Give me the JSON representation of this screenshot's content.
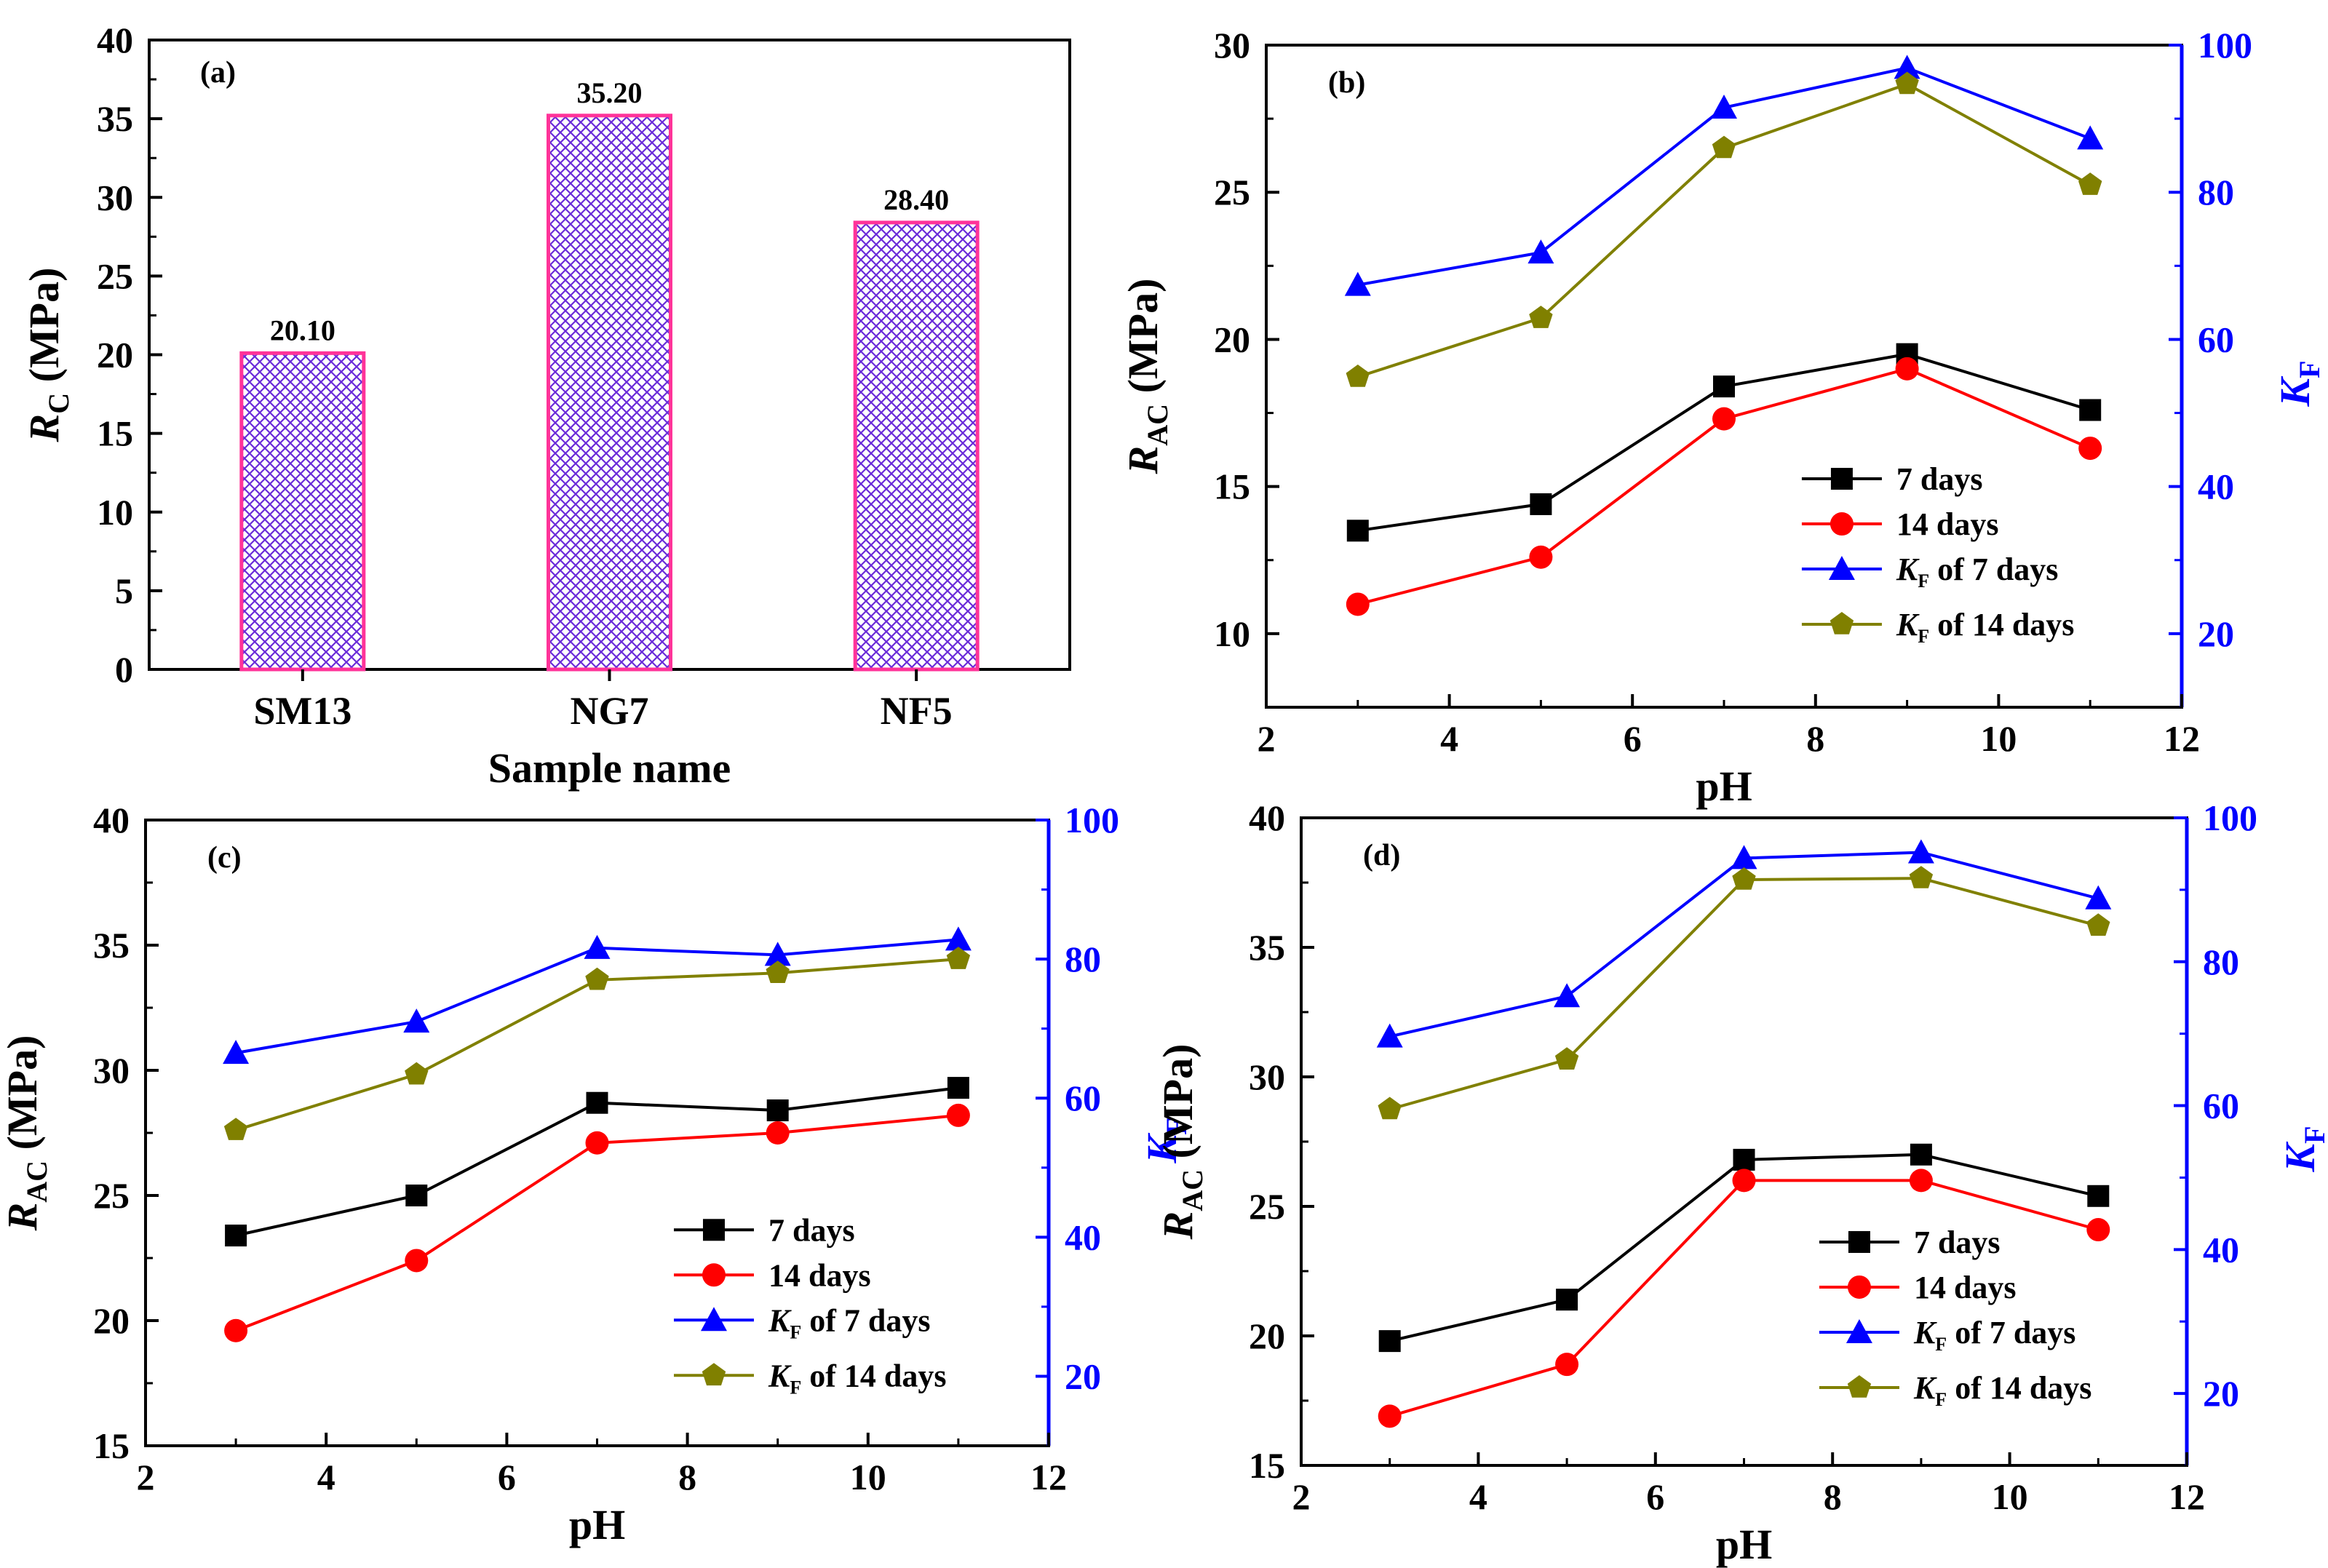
{
  "colors": {
    "black": "#000000",
    "red": "#ff0000",
    "blue": "#0000ff",
    "olive": "#808000",
    "bar_edge": "#ff3399",
    "bar_hatch": "#6a2bd9"
  },
  "chart_data": [
    {
      "id": "a",
      "type": "bar",
      "panel_label": "(a)",
      "title": "",
      "xlabel": "Sample name",
      "ylabel": {
        "main": "R",
        "sub": "C",
        "rest": " (MPa)"
      },
      "categories": [
        "SM13",
        "NG7",
        "NF5"
      ],
      "values": [
        20.1,
        35.2,
        28.4
      ],
      "value_labels": [
        "20.10",
        "35.20",
        "28.40"
      ],
      "ylim": [
        0,
        40
      ],
      "yticks": [
        "0",
        "5",
        "10",
        "15",
        "20",
        "25",
        "30",
        "35",
        "40"
      ]
    },
    {
      "id": "b",
      "type": "line",
      "panel_label": "(b)",
      "xlabel": "pH",
      "ylabel": {
        "main": "R",
        "sub": "AC",
        "rest": " (MPa)"
      },
      "y2label": {
        "main": "K",
        "sub": "F"
      },
      "xlim": [
        2,
        12
      ],
      "xticks": [
        "2",
        "4",
        "6",
        "8",
        "10",
        "12"
      ],
      "ylim": [
        7.5,
        30
      ],
      "yticks": [
        "10",
        "15",
        "20",
        "25",
        "30"
      ],
      "y2lim": [
        10,
        100
      ],
      "y2ticks": [
        "20",
        "40",
        "60",
        "80",
        "100"
      ],
      "x": [
        3,
        5,
        7,
        9,
        11
      ],
      "series": [
        {
          "name": "7 days",
          "axis": "left",
          "marker": "square",
          "color": "#000000",
          "values": [
            13.5,
            14.4,
            18.4,
            19.5,
            17.6
          ]
        },
        {
          "name": "14 days",
          "axis": "left",
          "marker": "circle",
          "color": "#ff0000",
          "values": [
            11.0,
            12.6,
            17.3,
            19.0,
            16.3
          ]
        },
        {
          "name": "of 7 days",
          "name_prefix": "K",
          "name_sub": "F",
          "axis": "right",
          "marker": "triangle",
          "color": "#0000ff",
          "values": [
            67.4,
            71.8,
            91.5,
            96.9,
            87.3
          ]
        },
        {
          "name": "of 14 days",
          "name_prefix": "K",
          "name_sub": "F",
          "axis": "right",
          "marker": "pentagon",
          "color": "#808000",
          "values": [
            54.9,
            62.9,
            86.0,
            94.7,
            81.0
          ]
        }
      ]
    },
    {
      "id": "c",
      "type": "line",
      "panel_label": "(c)",
      "xlabel": "pH",
      "ylabel": {
        "main": "R",
        "sub": "AC",
        "rest": " (MPa)"
      },
      "y2label": {
        "main": "K",
        "sub": "F"
      },
      "xlim": [
        2,
        12
      ],
      "xticks": [
        "2",
        "4",
        "6",
        "8",
        "10",
        "12"
      ],
      "ylim": [
        15,
        40
      ],
      "yticks": [
        "15",
        "20",
        "25",
        "30",
        "35",
        "40"
      ],
      "y2lim": [
        10,
        100
      ],
      "y2ticks": [
        "20",
        "40",
        "60",
        "80",
        "100"
      ],
      "x": [
        3,
        5,
        7,
        9,
        11
      ],
      "series": [
        {
          "name": "7 days",
          "axis": "left",
          "marker": "square",
          "color": "#000000",
          "values": [
            23.4,
            25.0,
            28.7,
            28.4,
            29.3
          ]
        },
        {
          "name": "14 days",
          "axis": "left",
          "marker": "circle",
          "color": "#ff0000",
          "values": [
            19.6,
            22.4,
            27.1,
            27.5,
            28.2
          ]
        },
        {
          "name": "of 7 days",
          "name_prefix": "K",
          "name_sub": "F",
          "axis": "right",
          "marker": "triangle",
          "color": "#0000ff",
          "values": [
            66.5,
            71.0,
            81.6,
            80.6,
            82.8
          ]
        },
        {
          "name": "of 14 days",
          "name_prefix": "K",
          "name_sub": "F",
          "axis": "right",
          "marker": "pentagon",
          "color": "#808000",
          "values": [
            55.4,
            63.4,
            77.0,
            78.0,
            80.0
          ]
        }
      ]
    },
    {
      "id": "d",
      "type": "line",
      "panel_label": "(d)",
      "xlabel": "pH",
      "ylabel": {
        "main": "R",
        "sub": "AC",
        "rest": " (MPa)"
      },
      "y2label": {
        "main": "K",
        "sub": "F"
      },
      "xlim": [
        2,
        12
      ],
      "xticks": [
        "2",
        "4",
        "6",
        "8",
        "10",
        "12"
      ],
      "ylim": [
        15,
        40
      ],
      "yticks": [
        "15",
        "20",
        "25",
        "30",
        "35",
        "40"
      ],
      "y2lim": [
        10,
        100
      ],
      "y2ticks": [
        "20",
        "40",
        "60",
        "80",
        "100"
      ],
      "x": [
        3,
        5,
        7,
        9,
        11
      ],
      "series": [
        {
          "name": "7 days",
          "axis": "left",
          "marker": "square",
          "color": "#000000",
          "values": [
            19.8,
            21.4,
            26.8,
            27.0,
            25.4
          ]
        },
        {
          "name": "14 days",
          "axis": "left",
          "marker": "circle",
          "color": "#ff0000",
          "values": [
            16.9,
            18.9,
            26.0,
            26.0,
            24.1
          ]
        },
        {
          "name": "of 7 days",
          "name_prefix": "K",
          "name_sub": "F",
          "axis": "right",
          "marker": "triangle",
          "color": "#0000ff",
          "values": [
            69.6,
            75.2,
            94.4,
            95.2,
            88.8
          ]
        },
        {
          "name": "of 14 days",
          "name_prefix": "K",
          "name_sub": "F",
          "axis": "right",
          "marker": "pentagon",
          "color": "#808000",
          "values": [
            59.5,
            66.4,
            91.4,
            91.6,
            85.0
          ]
        }
      ]
    }
  ]
}
